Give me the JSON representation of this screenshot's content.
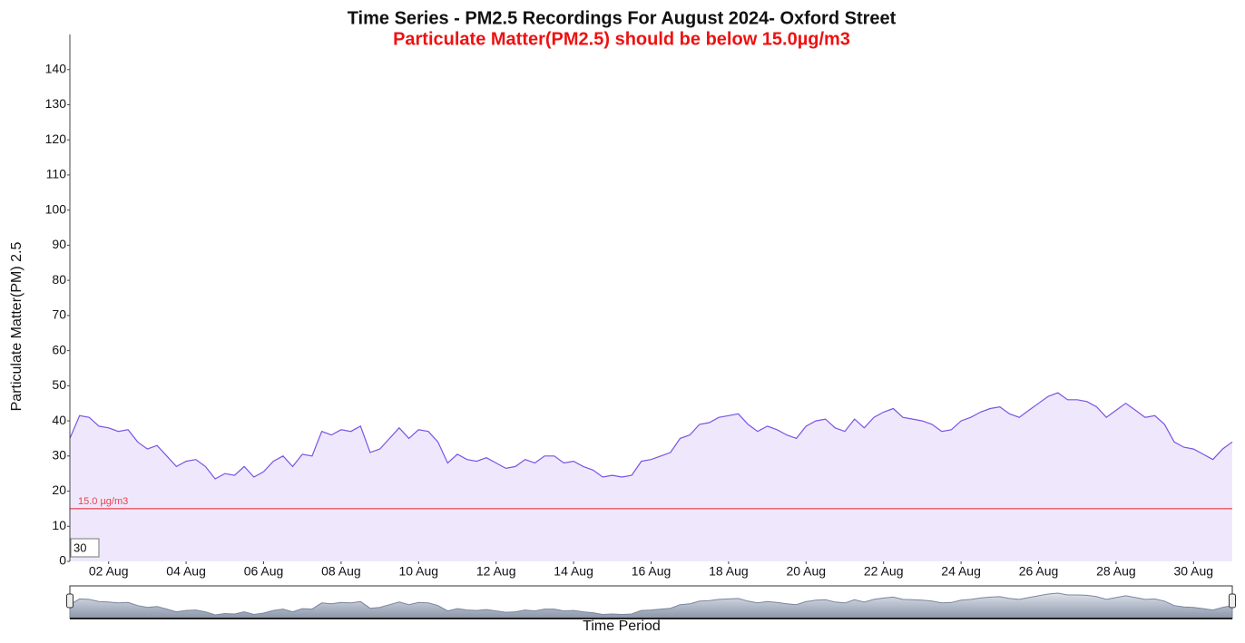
{
  "chart_data": {
    "type": "area",
    "title": "Time Series - PM2.5 Recordings For August 2024- Oxford Street",
    "subtitle": "Particulate Matter(PM2.5) should be below 15.0µg/m3",
    "y_label": "Particulate Matter(PM) 2.5",
    "x_label": "Time Period",
    "window_input": "30",
    "color": "#7b52e6",
    "fill": "#efe8fc",
    "threshold": {
      "value": 15,
      "label": "15.0 µg/m3",
      "color": "#e8414f"
    },
    "xlim": [
      1,
      31
    ],
    "ylim": [
      0,
      150
    ],
    "yticks": [
      0,
      10,
      20,
      30,
      40,
      50,
      60,
      70,
      80,
      90,
      100,
      110,
      120,
      130,
      140
    ],
    "xticks": [
      {
        "value": 2,
        "label": "02 Aug"
      },
      {
        "value": 4,
        "label": "04 Aug"
      },
      {
        "value": 6,
        "label": "06 Aug"
      },
      {
        "value": 8,
        "label": "08 Aug"
      },
      {
        "value": 10,
        "label": "10 Aug"
      },
      {
        "value": 12,
        "label": "12 Aug"
      },
      {
        "value": 14,
        "label": "14 Aug"
      },
      {
        "value": 16,
        "label": "16 Aug"
      },
      {
        "value": 18,
        "label": "18 Aug"
      },
      {
        "value": 20,
        "label": "20 Aug"
      },
      {
        "value": 22,
        "label": "22 Aug"
      },
      {
        "value": 24,
        "label": "24 Aug"
      },
      {
        "value": 26,
        "label": "26 Aug"
      },
      {
        "value": 28,
        "label": "28 Aug"
      },
      {
        "value": 30,
        "label": "30 Aug"
      }
    ],
    "x": [
      1,
      1.25,
      1.5,
      1.75,
      2,
      2.25,
      2.5,
      2.75,
      3,
      3.25,
      3.5,
      3.75,
      4,
      4.25,
      4.5,
      4.75,
      5,
      5.25,
      5.5,
      5.75,
      6,
      6.25,
      6.5,
      6.75,
      7,
      7.25,
      7.5,
      7.75,
      8,
      8.25,
      8.5,
      8.75,
      9,
      9.25,
      9.5,
      9.75,
      10,
      10.25,
      10.5,
      10.75,
      11,
      11.25,
      11.5,
      11.75,
      12,
      12.25,
      12.5,
      12.75,
      13,
      13.25,
      13.5,
      13.75,
      14,
      14.25,
      14.5,
      14.75,
      15,
      15.25,
      15.5,
      15.75,
      16,
      16.25,
      16.5,
      16.75,
      17,
      17.25,
      17.5,
      17.75,
      18,
      18.25,
      18.5,
      18.75,
      19,
      19.25,
      19.5,
      19.75,
      20,
      20.25,
      20.5,
      20.75,
      21,
      21.25,
      21.5,
      21.75,
      22,
      22.25,
      22.5,
      22.75,
      23,
      23.25,
      23.5,
      23.75,
      24,
      24.25,
      24.5,
      24.75,
      25,
      25.25,
      25.5,
      25.75,
      26,
      26.25,
      26.5,
      26.75,
      27,
      27.25,
      27.5,
      27.75,
      28,
      28.25,
      28.5,
      28.75,
      29,
      29.25,
      29.5,
      29.75,
      30,
      30.25,
      30.5,
      30.75,
      31
    ],
    "values": [
      35,
      41.5,
      41,
      38.5,
      38,
      37,
      37.5,
      34,
      32,
      33,
      30,
      27,
      28.5,
      29,
      27,
      23.5,
      25,
      24.5,
      27,
      24,
      25.5,
      28.5,
      30,
      27,
      30.5,
      30,
      37,
      36,
      37.5,
      37,
      38.5,
      31,
      32,
      35,
      38,
      35,
      37.5,
      37,
      34,
      28,
      30.5,
      29,
      28.5,
      29.5,
      28,
      26.5,
      27,
      29,
      28,
      30,
      30,
      28,
      28.5,
      27,
      26,
      24,
      24.5,
      24,
      24.5,
      28.5,
      29,
      30,
      31,
      35,
      36,
      39,
      39.5,
      41,
      41.5,
      42,
      39,
      37,
      38.5,
      37.5,
      36,
      35,
      38.5,
      40,
      40.5,
      38,
      37,
      40.5,
      38,
      41,
      42.5,
      43.5,
      41,
      40.5,
      40,
      39,
      37,
      37.5,
      40,
      41,
      42.5,
      43.5,
      44,
      42,
      41,
      43,
      45,
      47,
      48,
      46,
      46,
      45.5,
      44,
      41,
      43,
      45,
      43,
      41,
      41.5,
      39,
      34,
      32.5,
      32,
      30.5,
      29,
      32,
      34
    ]
  }
}
